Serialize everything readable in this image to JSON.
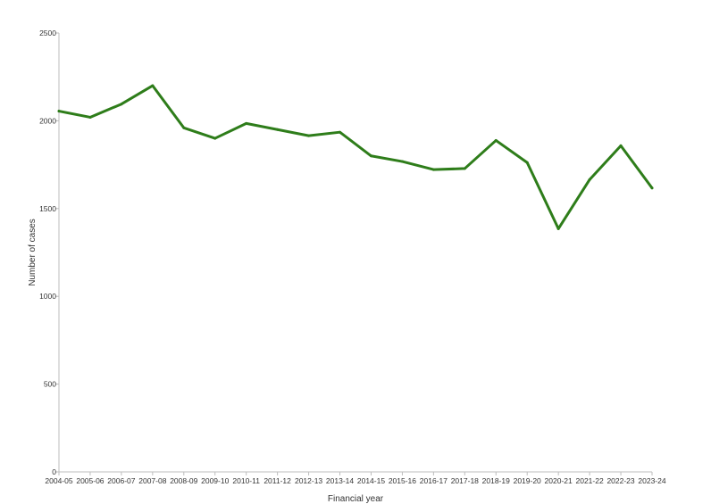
{
  "chart_data": {
    "type": "line",
    "title": "",
    "xlabel": "Financial year",
    "ylabel": "Number of cases",
    "ylim": [
      0,
      2500
    ],
    "yticks": [
      0,
      500,
      1000,
      1500,
      2000,
      2500
    ],
    "grid": false,
    "legend": "none",
    "categories": [
      "2004-05",
      "2005-06",
      "2006-07",
      "2007-08",
      "2008-09",
      "2009-10",
      "2010-11",
      "2011-12",
      "2012-13",
      "2013-14",
      "2014-15",
      "2015-16",
      "2016-17",
      "2017-18",
      "2018-19",
      "2019-20",
      "2020-21",
      "2021-22",
      "2022-23",
      "2023-24"
    ],
    "series": [
      {
        "color": "#2e7d1a",
        "values": [
          2055,
          2020,
          2095,
          2200,
          1960,
          1900,
          1985,
          1950,
          1915,
          1935,
          1800,
          1768,
          1722,
          1728,
          1888,
          1762,
          1385,
          1665,
          1858,
          1617
        ]
      }
    ]
  }
}
